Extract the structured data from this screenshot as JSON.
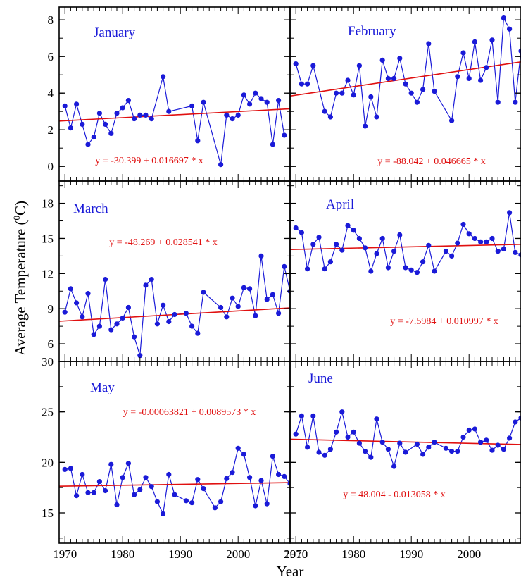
{
  "colors": {
    "series": "#1a1ad8",
    "trend": "#e01010",
    "frame": "#000000"
  },
  "chart_data": {
    "type": "line",
    "xlabel": "Year",
    "ylabel_main": "Average Temperature (",
    "ylabel_sup": "0",
    "ylabel_unit": "C)",
    "x_ticks": [
      "1970",
      "1980",
      "1990",
      "2000",
      "2010"
    ],
    "xlim": [
      1969,
      2009
    ],
    "panels": [
      {
        "title": "January",
        "equation": "y = -30.399 + 0.016697 * x",
        "trend": {
          "intercept": -30.399,
          "slope": 0.016697
        },
        "ylim": [
          -0.8,
          8.7
        ],
        "y_ticks": [
          0,
          2,
          4,
          6,
          8
        ],
        "x": [
          1970,
          1971,
          1972,
          1973,
          1974,
          1975,
          1976,
          1977,
          1978,
          1979,
          1980,
          1981,
          1982,
          1983,
          1984,
          1985,
          1987,
          1988,
          1992,
          1993,
          1994,
          1997,
          1998,
          1999,
          2000,
          2001,
          2002,
          2003,
          2004,
          2005,
          2006,
          2007,
          2008
        ],
        "y": [
          3.3,
          2.1,
          3.4,
          2.3,
          1.2,
          1.6,
          2.9,
          2.3,
          1.8,
          2.9,
          3.2,
          3.6,
          2.6,
          2.8,
          2.8,
          2.6,
          4.9,
          3.0,
          3.3,
          1.4,
          3.5,
          0.1,
          2.8,
          2.6,
          2.8,
          3.9,
          3.4,
          4.0,
          3.7,
          3.5,
          1.2,
          3.6,
          1.7
        ]
      },
      {
        "title": "February",
        "equation": "y = -88.042 + 0.046665 * x",
        "trend": {
          "intercept": -88.042,
          "slope": 0.046665
        },
        "ylim": [
          -0.8,
          8.7
        ],
        "y_ticks": [
          0,
          2,
          4,
          6,
          8
        ],
        "x": [
          1970,
          1971,
          1972,
          1973,
          1975,
          1976,
          1977,
          1978,
          1979,
          1980,
          1981,
          1982,
          1983,
          1984,
          1985,
          1986,
          1987,
          1988,
          1989,
          1990,
          1991,
          1992,
          1993,
          1994,
          1997,
          1998,
          1999,
          2000,
          2001,
          2002,
          2003,
          2004,
          2005,
          2006,
          2007,
          2008,
          2009
        ],
        "y": [
          5.6,
          4.5,
          4.5,
          5.5,
          3.0,
          2.7,
          4.0,
          4.0,
          4.7,
          3.9,
          5.5,
          2.2,
          3.8,
          2.7,
          5.8,
          4.8,
          4.8,
          5.9,
          4.5,
          4.0,
          3.5,
          4.2,
          6.7,
          4.1,
          2.5,
          4.9,
          6.2,
          4.8,
          6.8,
          4.7,
          5.4,
          6.9,
          3.5,
          8.1,
          7.5,
          3.5,
          6.3
        ]
      },
      {
        "title": "March",
        "equation": "y = -48.269 + 0.028541 * x",
        "trend": {
          "intercept": -48.269,
          "slope": 0.028541
        },
        "ylim": [
          4.5,
          19.9
        ],
        "y_ticks": [
          6,
          9,
          12,
          15,
          18
        ],
        "x": [
          1970,
          1971,
          1972,
          1973,
          1974,
          1975,
          1976,
          1977,
          1978,
          1979,
          1980,
          1981,
          1982,
          1983,
          1984,
          1985,
          1986,
          1987,
          1988,
          1989,
          1991,
          1992,
          1993,
          1994,
          1997,
          1998,
          1999,
          2000,
          2001,
          2002,
          2003,
          2004,
          2005,
          2006,
          2007,
          2008,
          2009
        ],
        "y": [
          8.7,
          10.7,
          9.5,
          8.3,
          10.3,
          6.8,
          7.5,
          11.5,
          7.2,
          7.7,
          8.2,
          9.1,
          6.6,
          5.0,
          11.0,
          11.5,
          7.7,
          9.3,
          7.9,
          8.5,
          8.6,
          7.5,
          6.9,
          10.4,
          9.1,
          8.3,
          9.9,
          9.2,
          10.8,
          10.7,
          8.4,
          13.5,
          9.8,
          10.2,
          8.6,
          12.6,
          10.5
        ]
      },
      {
        "title": "April",
        "equation": "y = -7.5984 + 0.010997 * x",
        "trend": {
          "intercept": -7.5984,
          "slope": 0.010997
        },
        "ylim": [
          4.5,
          19.9
        ],
        "y_ticks": [
          6,
          9,
          12,
          15,
          18
        ],
        "x": [
          1970,
          1971,
          1972,
          1973,
          1974,
          1975,
          1976,
          1977,
          1978,
          1979,
          1980,
          1981,
          1982,
          1983,
          1984,
          1985,
          1986,
          1987,
          1988,
          1989,
          1990,
          1991,
          1992,
          1993,
          1994,
          1996,
          1997,
          1998,
          1999,
          2000,
          2001,
          2002,
          2003,
          2004,
          2005,
          2006,
          2007,
          2008,
          2009
        ],
        "y": [
          15.9,
          15.5,
          12.4,
          14.5,
          15.1,
          12.4,
          13.0,
          14.5,
          14.0,
          16.1,
          15.7,
          15.0,
          14.2,
          12.2,
          13.7,
          15.0,
          12.5,
          13.9,
          15.3,
          12.5,
          12.3,
          12.1,
          13.0,
          14.4,
          12.2,
          13.9,
          13.5,
          14.6,
          16.2,
          15.4,
          15.0,
          14.7,
          14.7,
          15.0,
          13.9,
          14.1,
          17.2,
          13.8,
          13.6
        ]
      },
      {
        "title": "May",
        "equation": "y = -0.00063821 + 0.0089573 * x",
        "trend": {
          "intercept": -0.00063821,
          "slope": 0.0089573
        },
        "ylim": [
          12.0,
          30.0
        ],
        "y_ticks": [
          15,
          20,
          25,
          30
        ],
        "x": [
          1970,
          1971,
          1972,
          1973,
          1974,
          1975,
          1976,
          1977,
          1978,
          1979,
          1980,
          1981,
          1982,
          1983,
          1984,
          1985,
          1986,
          1987,
          1988,
          1989,
          1991,
          1992,
          1993,
          1994,
          1996,
          1997,
          1998,
          1999,
          2000,
          2001,
          2002,
          2003,
          2004,
          2005,
          2006,
          2007,
          2008,
          2009
        ],
        "y": [
          19.3,
          19.4,
          16.7,
          18.8,
          17.0,
          17.0,
          18.1,
          17.2,
          19.8,
          15.8,
          18.5,
          19.9,
          16.8,
          17.3,
          18.5,
          17.6,
          16.1,
          14.9,
          18.8,
          16.8,
          16.2,
          16.0,
          18.3,
          17.4,
          15.5,
          16.1,
          18.4,
          19.0,
          21.4,
          20.8,
          18.5,
          15.7,
          18.2,
          15.9,
          20.6,
          18.8,
          18.6,
          17.9
        ]
      },
      {
        "title": "June",
        "equation": "y = 48.004 - 0.013058 * x",
        "trend": {
          "intercept": 48.004,
          "slope": -0.013058
        },
        "ylim": [
          12.0,
          30.0
        ],
        "y_ticks": [
          15,
          20,
          25
        ],
        "x": [
          1970,
          1971,
          1972,
          1973,
          1974,
          1975,
          1976,
          1977,
          1978,
          1979,
          1980,
          1981,
          1982,
          1983,
          1984,
          1985,
          1986,
          1987,
          1988,
          1989,
          1991,
          1992,
          1993,
          1994,
          1996,
          1997,
          1998,
          1999,
          2000,
          2001,
          2002,
          2003,
          2004,
          2005,
          2006,
          2007,
          2008,
          2009
        ],
        "y": [
          22.8,
          24.6,
          21.5,
          24.6,
          21.0,
          20.7,
          21.3,
          23.0,
          25.0,
          22.5,
          23.0,
          21.9,
          21.1,
          20.5,
          24.3,
          22.0,
          21.3,
          19.6,
          21.9,
          21.0,
          21.8,
          20.8,
          21.5,
          22.0,
          21.4,
          21.1,
          21.1,
          22.5,
          23.2,
          23.3,
          22.0,
          22.2,
          21.2,
          21.7,
          21.3,
          22.4,
          24.0,
          24.4
        ]
      }
    ]
  }
}
